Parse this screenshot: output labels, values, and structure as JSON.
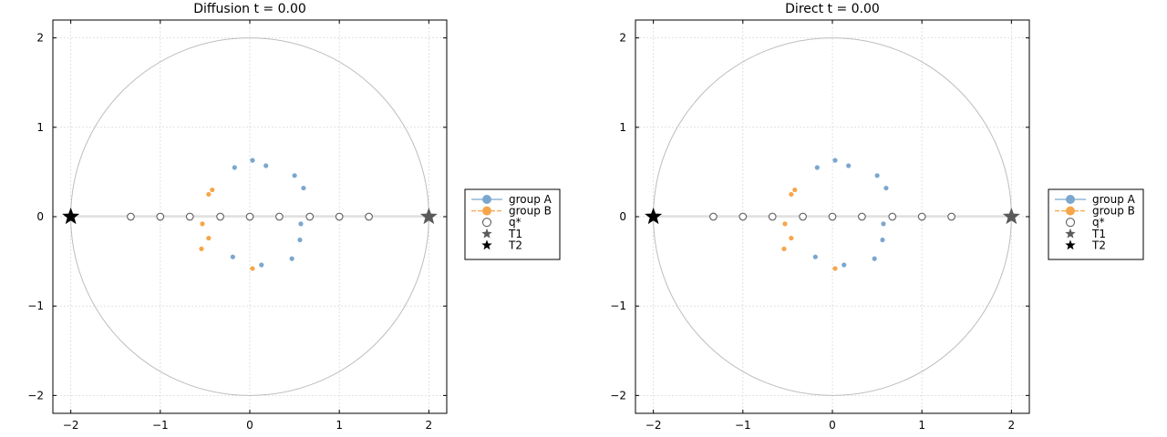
{
  "chart_data": [
    {
      "type": "scatter",
      "title": "Diffusion   t = 0.00",
      "xlim": [
        -2.2,
        2.2
      ],
      "ylim": [
        -2.2,
        2.2
      ],
      "x_ticks": [
        -2,
        -1,
        0,
        1,
        2
      ],
      "y_ticks": [
        -2,
        -1,
        0,
        1,
        2
      ],
      "x_tick_labels": [
        "−2",
        "−1",
        "0",
        "1",
        "2"
      ],
      "y_tick_labels": [
        "−2",
        "−1",
        "0",
        "1",
        "2"
      ],
      "grid": true,
      "legend_position": "outer-right",
      "circle_radius": 2,
      "series": [
        {
          "name": "group A",
          "color": "#7ba7cf",
          "marker": "dot",
          "points": [
            [
              0.03,
              0.63
            ],
            [
              0.18,
              0.57
            ],
            [
              -0.17,
              0.55
            ],
            [
              0.5,
              0.46
            ],
            [
              0.6,
              0.32
            ],
            [
              0.57,
              -0.08
            ],
            [
              0.56,
              -0.26
            ],
            [
              0.47,
              -0.47
            ],
            [
              0.13,
              -0.54
            ],
            [
              -0.19,
              -0.45
            ]
          ]
        },
        {
          "name": "group B",
          "color": "#f7a54a",
          "marker": "dot",
          "points": [
            [
              -0.42,
              0.3
            ],
            [
              -0.46,
              0.25
            ],
            [
              -0.53,
              -0.08
            ],
            [
              -0.46,
              -0.24
            ],
            [
              -0.54,
              -0.36
            ],
            [
              0.03,
              -0.58
            ]
          ]
        },
        {
          "name": "q*",
          "color": "#606060",
          "marker": "open-circle",
          "points": [
            [
              -1.33,
              0
            ],
            [
              -1.0,
              0
            ],
            [
              -0.67,
              0
            ],
            [
              -0.33,
              0
            ],
            [
              0,
              0
            ],
            [
              0.33,
              0
            ],
            [
              0.67,
              0
            ],
            [
              1.0,
              0
            ],
            [
              1.33,
              0
            ]
          ]
        },
        {
          "name": "T1",
          "color": "#5a5a5a",
          "marker": "star",
          "points": [
            [
              2,
              0
            ]
          ]
        },
        {
          "name": "T2",
          "color": "#000000",
          "marker": "star",
          "points": [
            [
              -2,
              0
            ]
          ]
        }
      ]
    },
    {
      "type": "scatter",
      "title": "Direct   t = 0.00",
      "xlim": [
        -2.2,
        2.2
      ],
      "ylim": [
        -2.2,
        2.2
      ],
      "x_ticks": [
        -2,
        -1,
        0,
        1,
        2
      ],
      "y_ticks": [
        -2,
        -1,
        0,
        1,
        2
      ],
      "x_tick_labels": [
        "−2",
        "−1",
        "0",
        "1",
        "2"
      ],
      "y_tick_labels": [
        "−2",
        "−1",
        "0",
        "1",
        "2"
      ],
      "grid": true,
      "legend_position": "outer-right",
      "circle_radius": 2,
      "series": [
        {
          "name": "group A",
          "color": "#7ba7cf",
          "marker": "dot",
          "points": [
            [
              0.03,
              0.63
            ],
            [
              0.18,
              0.57
            ],
            [
              -0.17,
              0.55
            ],
            [
              0.5,
              0.46
            ],
            [
              0.6,
              0.32
            ],
            [
              0.57,
              -0.08
            ],
            [
              0.56,
              -0.26
            ],
            [
              0.47,
              -0.47
            ],
            [
              0.13,
              -0.54
            ],
            [
              -0.19,
              -0.45
            ]
          ]
        },
        {
          "name": "group B",
          "color": "#f7a54a",
          "marker": "dot",
          "points": [
            [
              -0.42,
              0.3
            ],
            [
              -0.46,
              0.25
            ],
            [
              -0.53,
              -0.08
            ],
            [
              -0.46,
              -0.24
            ],
            [
              -0.54,
              -0.36
            ],
            [
              0.03,
              -0.58
            ]
          ]
        },
        {
          "name": "q*",
          "color": "#606060",
          "marker": "open-circle",
          "points": [
            [
              -1.33,
              0
            ],
            [
              -1.0,
              0
            ],
            [
              -0.67,
              0
            ],
            [
              -0.33,
              0
            ],
            [
              0,
              0
            ],
            [
              0.33,
              0
            ],
            [
              0.67,
              0
            ],
            [
              1.0,
              0
            ],
            [
              1.33,
              0
            ]
          ]
        },
        {
          "name": "T1",
          "color": "#5a5a5a",
          "marker": "star",
          "points": [
            [
              2,
              0
            ]
          ]
        },
        {
          "name": "T2",
          "color": "#000000",
          "marker": "star",
          "points": [
            [
              -2,
              0
            ]
          ]
        }
      ]
    }
  ]
}
